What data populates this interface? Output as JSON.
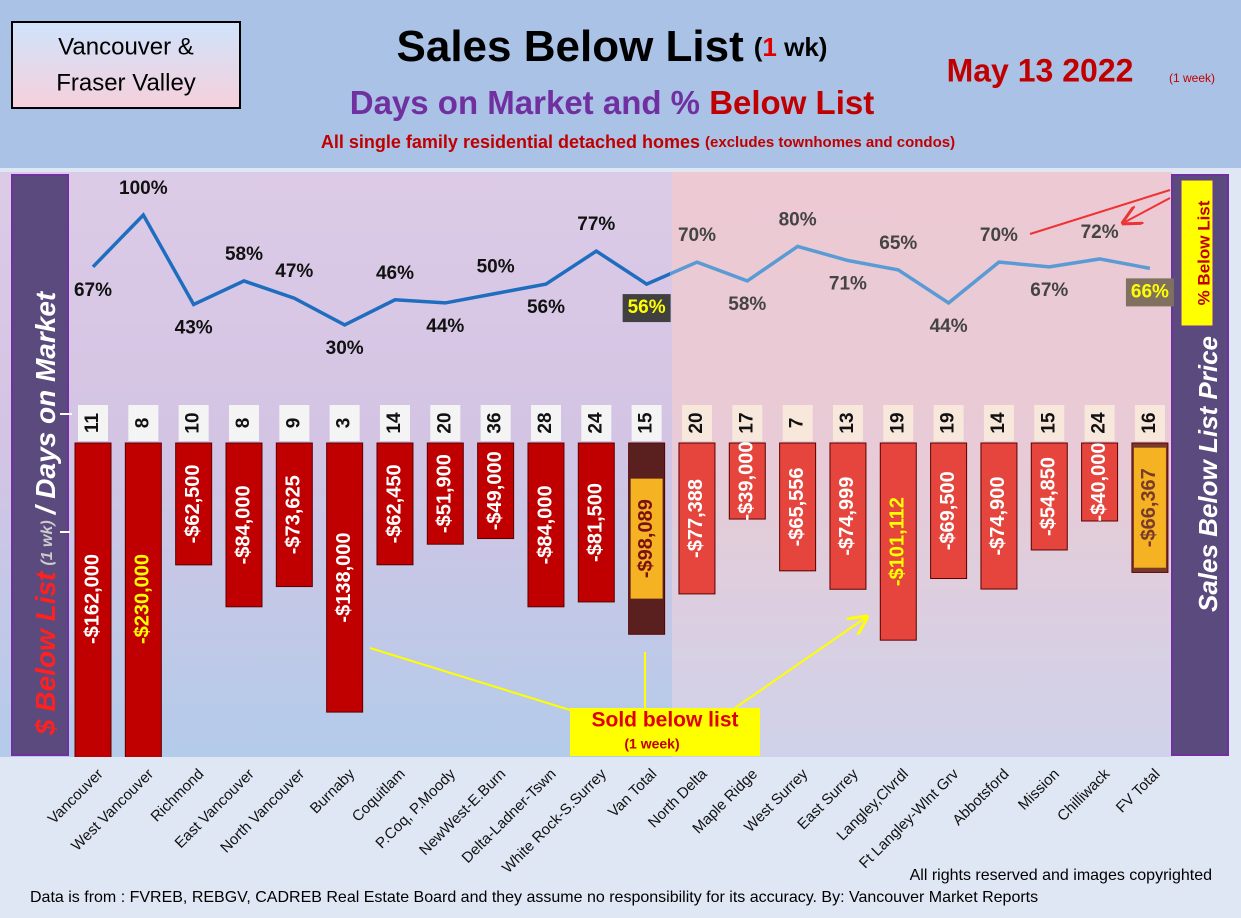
{
  "region": [
    "Vancouver &",
    "Fraser Valley"
  ],
  "chart_data": {
    "type": "bar-line",
    "title": "Sales Below List",
    "title_note": [
      "(",
      "1",
      " wk)"
    ],
    "subtitle": [
      "Days on Market and % ",
      "Below List"
    ],
    "description": [
      "All single family residential detached homes ",
      "(excludes townhomes and condos)"
    ],
    "date": "May 13  2022",
    "date_note": "(1 week)",
    "y_label": [
      "$ Below List",
      "(1 wk)",
      "/ Days on Market"
    ],
    "y2_label": "Sales Below List Price",
    "line_label": "% Below List",
    "annotation": [
      "Sold below list",
      "(1 week)"
    ],
    "categories": [
      "Vancouver",
      "West Vancouver",
      "Richmond",
      "East Vancouver",
      "North Vancouver",
      "Burnaby",
      "Coquitlam",
      "P.Coq, P.Moody",
      "NewWest-E.Burn",
      "Delta-Ladner-Tswn",
      "White Rock-S.Surrey",
      "Van Total",
      "North Delta",
      "Maple Ridge",
      "West Surrey",
      "East Surrey",
      "Langley,Clvrdl",
      "Ft Langley-Wlnt Grv",
      "Abbotsford",
      "Mission",
      "Chilliwack",
      "FV Total"
    ],
    "ylim": [
      -160000,
      0
    ],
    "y2lim": [
      0,
      100
    ],
    "series": [
      {
        "type": "bar",
        "colors": [
          "#c00000",
          "#c00000",
          "#c00000",
          "#c00000",
          "#c00000",
          "#c00000",
          "#c00000",
          "#c00000",
          "#c00000",
          "#c00000",
          "#c00000",
          "#5a1f1f",
          "#e5453c",
          "#e5453c",
          "#e5453c",
          "#e5453c",
          "#e5453c",
          "#e5453c",
          "#e5453c",
          "#e5453c",
          "#e5453c",
          "#7a3a2a"
        ],
        "label_colors": [
          "#ffffff",
          "#ffff00",
          "#ffffff",
          "#ffffff",
          "#ffffff",
          "#ffffff",
          "#ffffff",
          "#ffffff",
          "#ffffff",
          "#ffffff",
          "#ffffff",
          "#7a1010",
          "#ffffff",
          "#ffffff",
          "#ffffff",
          "#ffffff",
          "#ffff00",
          "#ffffff",
          "#ffffff",
          "#ffffff",
          "#ffffff",
          "#7a3a2a"
        ],
        "label_backgrounds": [
          null,
          null,
          null,
          null,
          null,
          null,
          null,
          null,
          null,
          null,
          null,
          "#f5b323",
          null,
          null,
          null,
          null,
          null,
          null,
          null,
          null,
          null,
          "#f5b323"
        ],
        "values": [
          -162000,
          -230000,
          -62500,
          -84000,
          -73625,
          -138000,
          -62450,
          -51900,
          -49000,
          -84000,
          -81500,
          -98089,
          -77388,
          -39000,
          -65556,
          -74999,
          -101112,
          -69500,
          -74900,
          -54850,
          -40000,
          -66367
        ],
        "value_labels": [
          "-$162,000",
          "-$230,000",
          "-$62,500",
          "-$84,000",
          "-$73,625",
          "-$138,000",
          "-$62,450",
          "-$51,900",
          "-$49,000",
          "-$84,000",
          "-$81,500",
          "-$98,089",
          "-$77,388",
          "-$39,000",
          "-$65,556",
          "-$74,999",
          "-$101,112",
          "-$69,500",
          "-$74,900",
          "-$54,850",
          "-$40,000",
          "-$66,367"
        ]
      },
      {
        "type": "line",
        "axis": "y2",
        "colors": [
          "#1f6dbf",
          "#5b9bd5"
        ],
        "label_colors": [
          "#111111",
          "#111111",
          "#111111",
          "#111111",
          "#111111",
          "#111111",
          "#111111",
          "#111111",
          "#111111",
          "#111111",
          "#111111",
          "#ffff00",
          "#444444",
          "#444444",
          "#444444",
          "#444444",
          "#444444",
          "#444444",
          "#444444",
          "#444444",
          "#444444",
          "#ffff00"
        ],
        "label_backgrounds": [
          null,
          null,
          null,
          null,
          null,
          null,
          null,
          null,
          null,
          null,
          null,
          "#404040",
          null,
          null,
          null,
          null,
          null,
          null,
          null,
          null,
          null,
          "#7f7060"
        ],
        "values": [
          67,
          100,
          43,
          58,
          47,
          30,
          46,
          44,
          50,
          56,
          77,
          56,
          70,
          58,
          80,
          71,
          65,
          44,
          70,
          67,
          72,
          66
        ],
        "value_labels": [
          "67%",
          "100%",
          "43%",
          "58%",
          "47%",
          "30%",
          "46%",
          "44%",
          "50%",
          "56%",
          "77%",
          "56%",
          "70%",
          "58%",
          "80%",
          "71%",
          "65%",
          "44%",
          "70%",
          "67%",
          "72%",
          "66%"
        ]
      },
      {
        "type": "label-box",
        "values": [
          11,
          8,
          10,
          8,
          9,
          3,
          14,
          20,
          36,
          28,
          24,
          15,
          20,
          17,
          7,
          13,
          19,
          19,
          14,
          15,
          24,
          16
        ]
      }
    ]
  },
  "footer": {
    "rights": "All rights reserved and  images copyrighted",
    "source": "Data is from : FVREB, REBGV, CADREB Real Estate Board and they assume no responsibility for its accuracy. By: Vancouver Market Reports"
  }
}
